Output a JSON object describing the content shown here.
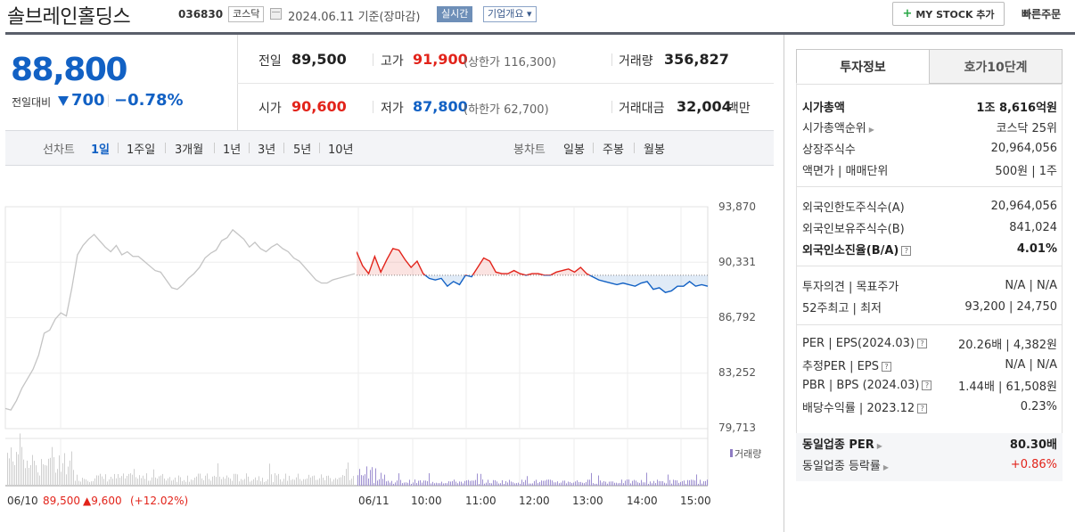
{
  "header": {
    "stock_name": "솔브레인홀딩스",
    "code": "036830",
    "market": "코스닥",
    "date": "2024.06.11 기준(장마감)",
    "realtime_tag": "실시간",
    "company_overview": "기업개요 ▾",
    "mystock_label": "MY STOCK 추가",
    "quick_order": "빠른주문"
  },
  "price": {
    "current": "88,800",
    "change_label": "전일대비",
    "change": "700",
    "change_pct": "−0.78%"
  },
  "summary": {
    "prev_close_label": "전일",
    "prev_close": "89,500",
    "high_label": "고가",
    "high": "91,900",
    "upper_limit": "(상한가 116,300)",
    "volume_label": "거래량",
    "volume": "356,827",
    "open_label": "시가",
    "open": "90,600",
    "low_label": "저가",
    "low": "87,800",
    "lower_limit": "(하한가 62,700)",
    "amount_label": "거래대금",
    "amount": "32,004",
    "amount_unit": "백만"
  },
  "period_bar": {
    "line_chart_label": "선차트",
    "periods": [
      "1일",
      "1주일",
      "3개월",
      "1년",
      "3년",
      "5년",
      "10년"
    ],
    "active_period": "1일",
    "candle_label": "봉차트",
    "candles": [
      "일봉",
      "주봉",
      "월봉"
    ]
  },
  "chart_data": {
    "type": "line",
    "y_ticks": [
      "93,870",
      "90,331",
      "86,792",
      "83,252",
      "79,713"
    ],
    "ylim": [
      79713,
      93870
    ],
    "baseline": 89500,
    "x_ticks": [
      "06/10",
      "06/11",
      "10:00",
      "11:00",
      "12:00",
      "13:00",
      "14:00",
      "15:00"
    ],
    "volume_label": "거래량",
    "prev_day_summary": {
      "date": "06/10",
      "close": "89,500",
      "change": "▲9,600",
      "pct": "(+12.02%)"
    },
    "series": [
      {
        "name": "06/10",
        "values": [
          81000,
          80900,
          81500,
          82300,
          82900,
          83500,
          84400,
          85800,
          86000,
          86700,
          87100,
          86900,
          88700,
          90800,
          91400,
          91800,
          92100,
          91700,
          91300,
          91000,
          91400,
          90800,
          91000,
          90700,
          90700,
          90400,
          90100,
          89800,
          89700,
          89200,
          88700,
          88600,
          88900,
          89300,
          89600,
          90000,
          90600,
          90900,
          91100,
          91700,
          91900,
          92400,
          92100,
          91800,
          91300,
          91600,
          91200,
          91000,
          91300,
          91500,
          91200,
          91000,
          90600,
          90400,
          90000,
          89600,
          89200,
          89000,
          89000,
          89200,
          89300,
          89400,
          89500,
          89600
        ]
      },
      {
        "name": "06/11",
        "values": [
          91000,
          90100,
          89600,
          90700,
          89700,
          90500,
          91200,
          91100,
          90500,
          90000,
          90400,
          89600,
          89300,
          89200,
          89300,
          88800,
          89100,
          88900,
          89500,
          89400,
          90000,
          90600,
          90400,
          89700,
          89600,
          89600,
          89800,
          89600,
          89500,
          89600,
          89600,
          89500,
          89500,
          89700,
          89800,
          89900,
          89700,
          90000,
          89600,
          89400,
          89200,
          89100,
          89000,
          88900,
          89000,
          88900,
          88800,
          89000,
          89100,
          88600,
          88700,
          88400,
          88500,
          88800,
          88800,
          89100,
          88800,
          88900,
          88800
        ]
      }
    ]
  },
  "right_panel": {
    "tabs": [
      "투자정보",
      "호가10단계"
    ],
    "rows1": [
      {
        "label": "시가총액",
        "value": "1조 8,616억원"
      },
      {
        "label": "시가총액순위",
        "value": "코스닥 25위"
      },
      {
        "label": "상장주식수",
        "value": "20,964,056"
      },
      {
        "label": "액면가 | 매매단위",
        "value": "500원 | 1주"
      }
    ],
    "rows2": [
      {
        "label": "외국인한도주식수(A)",
        "value": "20,964,056"
      },
      {
        "label": "외국인보유주식수(B)",
        "value": "841,024"
      },
      {
        "label": "외국인소진율(B/A)",
        "value": "4.01%"
      }
    ],
    "rows3": [
      {
        "label": "투자의견 | 목표주가",
        "value": "N/A | N/A"
      },
      {
        "label": "52주최고 | 최저",
        "value": "93,200 | 24,750"
      }
    ],
    "rows4": [
      {
        "label": "PER | EPS(2024.03)",
        "value": "20.26배 | 4,382원"
      },
      {
        "label": "추정PER | EPS",
        "value": "N/A | N/A"
      },
      {
        "label": "PBR | BPS (2024.03)",
        "value": "1.44배 | 61,508원"
      },
      {
        "label": "배당수익률 | 2023.12",
        "value": "0.23%"
      }
    ],
    "rows5": [
      {
        "label": "동일업종 PER",
        "value": "80.30배"
      },
      {
        "label": "동일업종 등락률",
        "value": "+0.86%"
      }
    ]
  },
  "colors": {
    "up": "#e2231a",
    "down": "#1261c4",
    "prev_line": "#c4c4c4"
  }
}
